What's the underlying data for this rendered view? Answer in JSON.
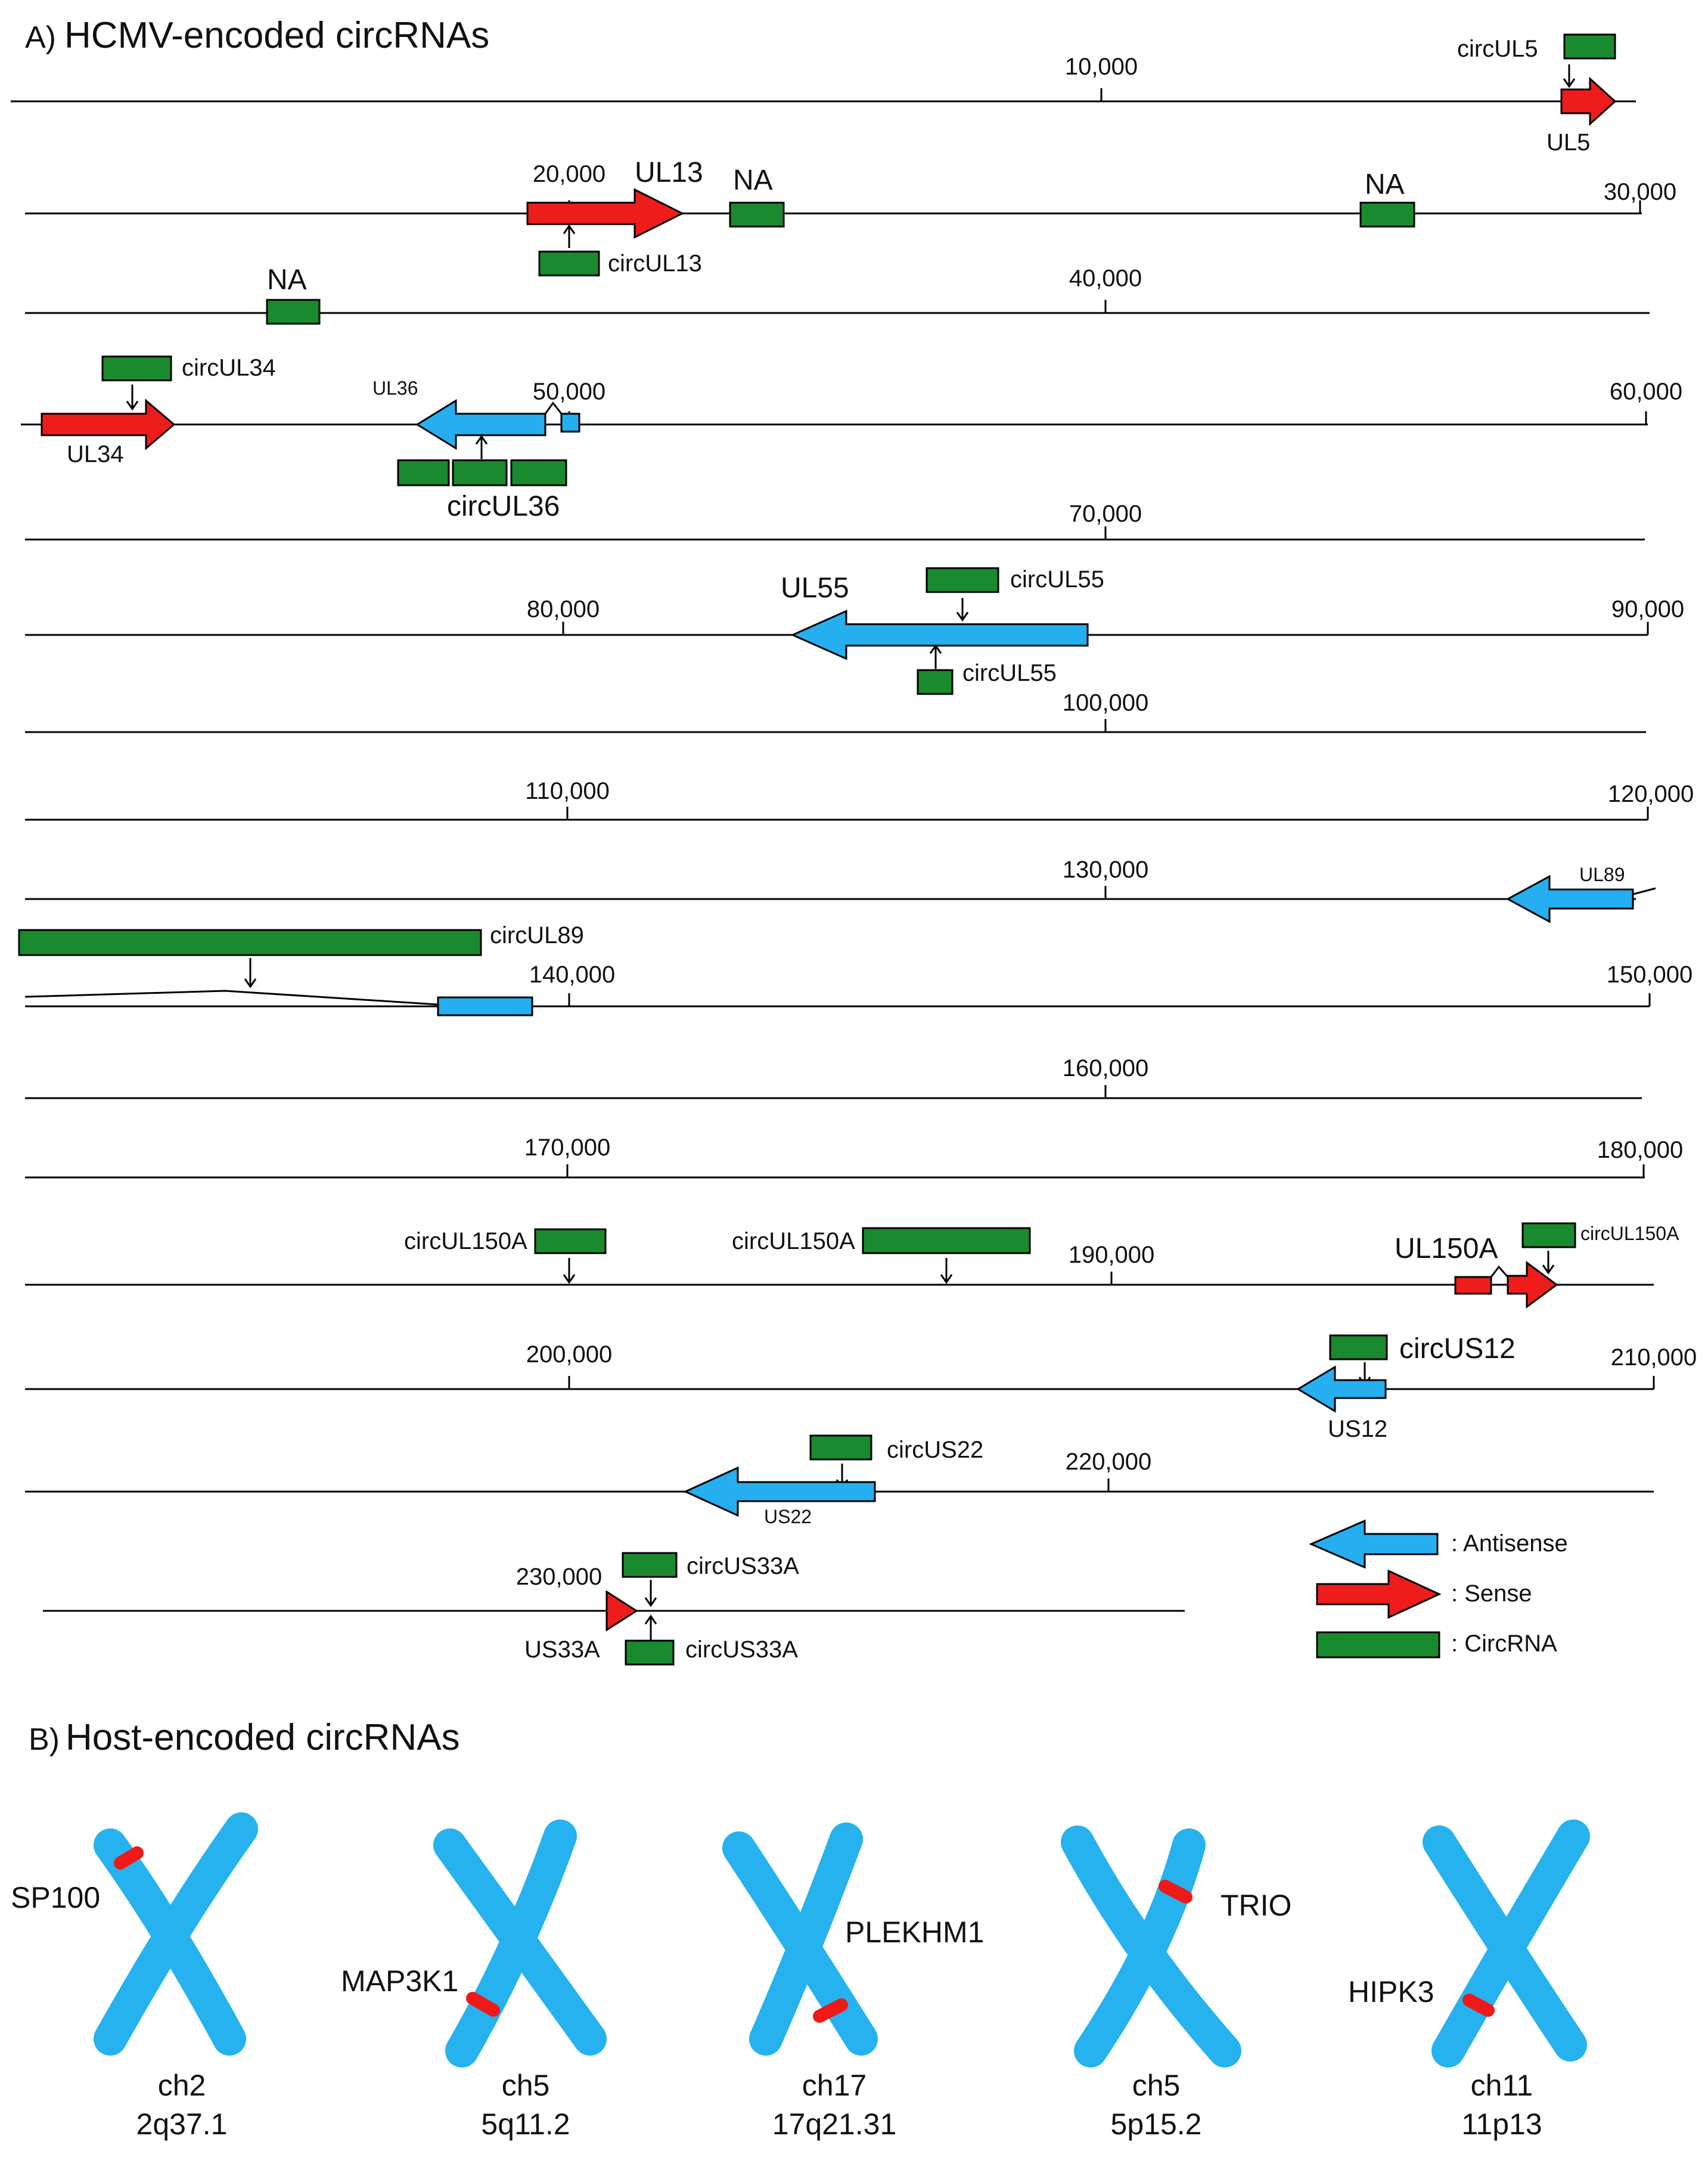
{
  "panelA": {
    "letter": "A)",
    "title": "HCMV-encoded circRNAs",
    "ticks": [
      "10,000",
      "20,000",
      "30,000",
      "40,000",
      "50,000",
      "60,000",
      "70,000",
      "80,000",
      "90,000",
      "100,000",
      "110,000",
      "120,000",
      "130,000",
      "140,000",
      "150,000",
      "160,000",
      "170,000",
      "180,000",
      "190,000",
      "200,000",
      "210,000",
      "220,000",
      "230,000"
    ],
    "labels": {
      "circUL5": "circUL5",
      "UL5": "UL5",
      "UL13": "UL13",
      "circUL13": "circUL13",
      "NA": "NA",
      "circUL34": "circUL34",
      "UL34": "UL34",
      "UL36": "UL36",
      "circUL36": "circUL36",
      "UL55": "UL55",
      "circUL55": "circUL55",
      "UL89": "UL89",
      "circUL89": "circUL89",
      "circUL150A": "circUL150A",
      "UL150A": "UL150A",
      "circUS12": "circUS12",
      "US12": "US12",
      "circUS22": "circUS22",
      "US22": "US22",
      "circUS33A": "circUS33A",
      "US33A": "US33A"
    },
    "legend": {
      "antisense": ": Antisense",
      "sense": ": Sense",
      "circrna": ":  CircRNA"
    }
  },
  "panelB": {
    "letter": "B)",
    "title": "Host-encoded circRNAs",
    "chromosomes": [
      {
        "gene": "SP100",
        "chr": "ch2",
        "band": "2q37.1"
      },
      {
        "gene": "MAP3K1",
        "chr": "ch5",
        "band": "5q11.2"
      },
      {
        "gene": "PLEKHM1",
        "chr": "ch17",
        "band": "17q21.31"
      },
      {
        "gene": "TRIO",
        "chr": "ch5",
        "band": "5p15.2"
      },
      {
        "gene": "HIPK3",
        "chr": "ch11",
        "band": "11p13"
      }
    ]
  },
  "colors": {
    "circrna": "#1a8a2e",
    "sense": "#ef1c1c",
    "antisense": "#25aef0",
    "chromosome": "#25b2ee",
    "locus": "#f01818"
  }
}
